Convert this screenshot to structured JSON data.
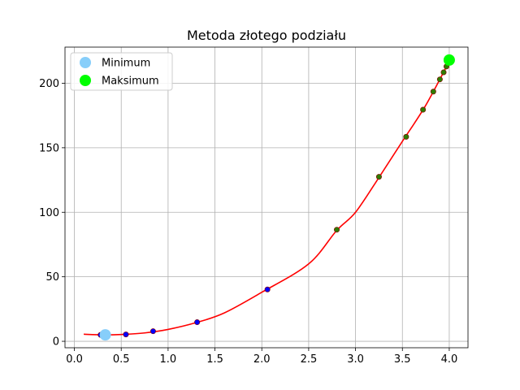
{
  "chart_data": {
    "type": "scatter",
    "title": "Metoda złotego podziału",
    "xlabel": "",
    "ylabel": "",
    "xlim": [
      -0.1,
      4.2
    ],
    "ylim": [
      -5,
      228
    ],
    "xticks": [
      0.0,
      0.5,
      1.0,
      1.5,
      2.0,
      2.5,
      3.0,
      3.5,
      4.0
    ],
    "xtick_labels": [
      "0.0",
      "0.5",
      "1.0",
      "1.5",
      "2.0",
      "2.5",
      "3.0",
      "3.5",
      "4.0"
    ],
    "yticks": [
      0,
      50,
      100,
      150,
      200
    ],
    "ytick_labels": [
      "0",
      "50",
      "100",
      "150",
      "200"
    ],
    "grid": true,
    "legend": {
      "placement": "top-left",
      "entries": [
        {
          "label": "Minimum",
          "color": "#87cefa"
        },
        {
          "label": "Maksimum",
          "color": "#00ff00"
        }
      ]
    },
    "curve": {
      "color": "#ff0000",
      "x_range": [
        0.1,
        4.0
      ],
      "points": [
        [
          0.1,
          5.5
        ],
        [
          0.3,
          5.0
        ],
        [
          0.5,
          5.3
        ],
        [
          0.75,
          6.5
        ],
        [
          1.0,
          9.2
        ],
        [
          1.3,
          14.5
        ],
        [
          1.6,
          22.0
        ],
        [
          2.0,
          38.0
        ],
        [
          2.5,
          60.0
        ],
        [
          2.8,
          86.0
        ],
        [
          3.0,
          100.0
        ],
        [
          3.25,
          127.0
        ],
        [
          3.5,
          155.0
        ],
        [
          3.75,
          183.0
        ],
        [
          4.0,
          217.0
        ]
      ]
    },
    "series": [
      {
        "color": "#0000ff",
        "points": [
          [
            0.28,
            5.0
          ],
          [
            0.55,
            5.3
          ],
          [
            0.84,
            7.8
          ],
          [
            1.31,
            14.8
          ],
          [
            2.06,
            40.2
          ]
        ]
      },
      {
        "color": "#2e7d00",
        "points": [
          [
            2.8,
            86.5
          ],
          [
            3.25,
            127.5
          ],
          [
            3.54,
            158.5
          ],
          [
            3.72,
            179.5
          ],
          [
            3.83,
            193.5
          ],
          [
            3.9,
            203.0
          ],
          [
            3.94,
            208.5
          ],
          [
            3.97,
            213.0
          ]
        ]
      }
    ],
    "minimum": {
      "x": 0.33,
      "y": 5.0,
      "color": "#87cefa"
    },
    "maximum": {
      "x": 4.0,
      "y": 218.0,
      "color": "#00ff00"
    }
  }
}
